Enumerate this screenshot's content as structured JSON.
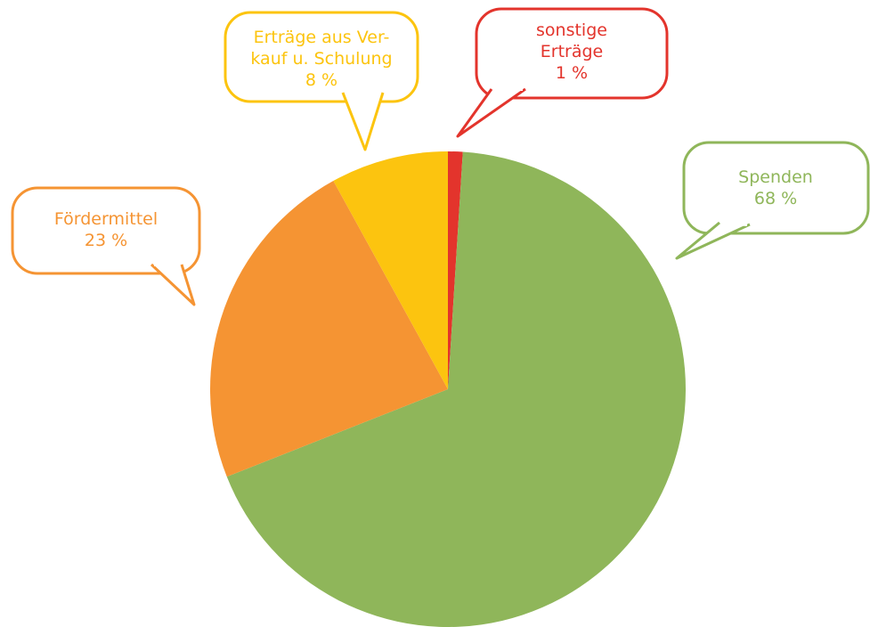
{
  "chart_data": {
    "type": "pie",
    "title": "",
    "start_angle_deg": 0,
    "direction": "clockwise",
    "slices": [
      {
        "key": "sonstige",
        "label_lines": [
          "sonstige",
          "Erträge"
        ],
        "value": 1,
        "value_label": "1 %",
        "color": "#e3342c"
      },
      {
        "key": "spenden",
        "label_lines": [
          "Spenden"
        ],
        "value": 68,
        "value_label": "68 %",
        "color": "#8fb65a"
      },
      {
        "key": "foerdermittel",
        "label_lines": [
          "Fördermittel"
        ],
        "value": 23,
        "value_label": "23 %",
        "color": "#f59433"
      },
      {
        "key": "ertraege",
        "label_lines": [
          "Erträge aus Ver-",
          "kauf u. Schulung"
        ],
        "value": 8,
        "value_label": "8 %",
        "color": "#fcc40f"
      }
    ],
    "label_style": "speech-bubbles"
  }
}
